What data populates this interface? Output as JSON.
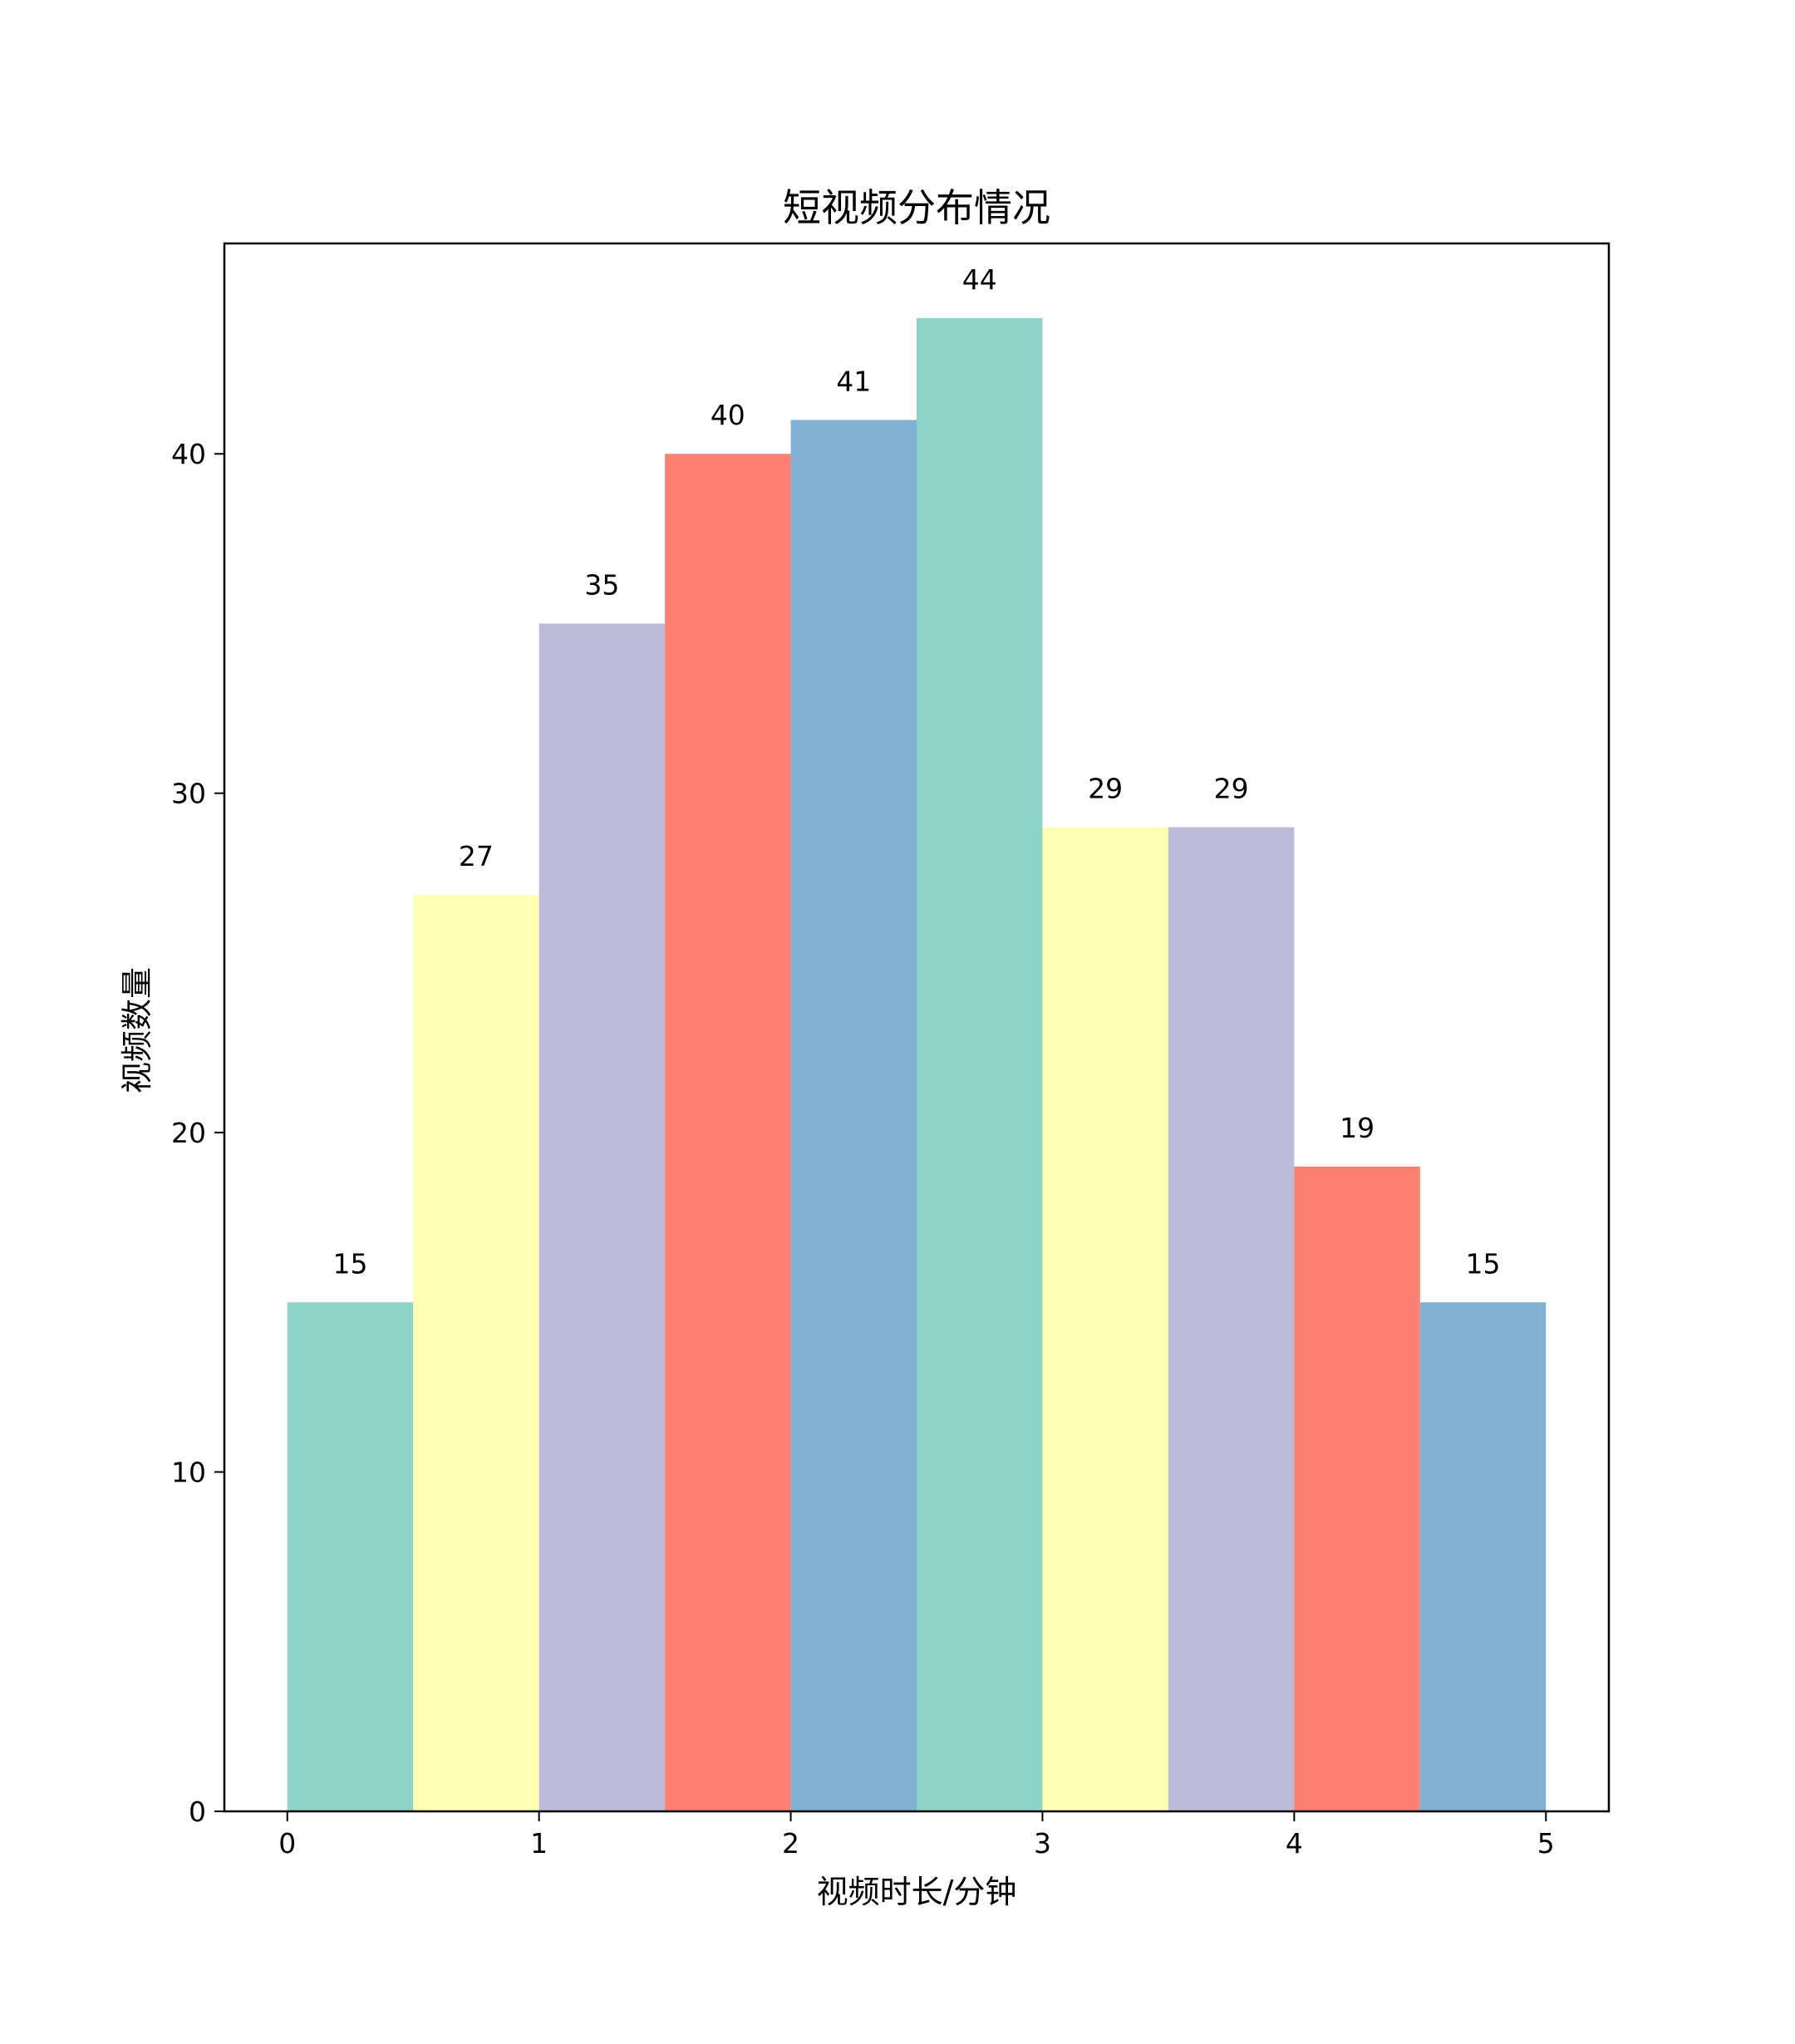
{
  "chart_data": {
    "type": "bar",
    "title": "短视频分布情况",
    "xlabel": "视频时长/分钟",
    "ylabel": "视频数量",
    "bins": [
      {
        "start": 0.0,
        "end": 0.5,
        "value": 15,
        "color": "#8dd3c7"
      },
      {
        "start": 0.5,
        "end": 1.0,
        "value": 27,
        "color": "#ffffb3"
      },
      {
        "start": 1.0,
        "end": 1.5,
        "value": 35,
        "color": "#bebada"
      },
      {
        "start": 1.5,
        "end": 2.0,
        "value": 40,
        "color": "#fb8072"
      },
      {
        "start": 2.0,
        "end": 2.5,
        "value": 41,
        "color": "#80b1d3"
      },
      {
        "start": 2.5,
        "end": 3.0,
        "value": 44,
        "color": "#8dd3c7"
      },
      {
        "start": 3.0,
        "end": 3.5,
        "value": 29,
        "color": "#ffffb3"
      },
      {
        "start": 3.5,
        "end": 4.0,
        "value": 29,
        "color": "#bebada"
      },
      {
        "start": 4.0,
        "end": 4.5,
        "value": 19,
        "color": "#fb8072"
      },
      {
        "start": 4.5,
        "end": 5.0,
        "value": 15,
        "color": "#80b1d3"
      }
    ],
    "xlim": [
      -0.25,
      5.25
    ],
    "ylim": [
      0,
      46.2
    ],
    "xticks": [
      0,
      1,
      2,
      3,
      4,
      5
    ],
    "yticks": [
      0,
      10,
      20,
      30,
      40
    ],
    "grid": false,
    "legend": "none"
  }
}
